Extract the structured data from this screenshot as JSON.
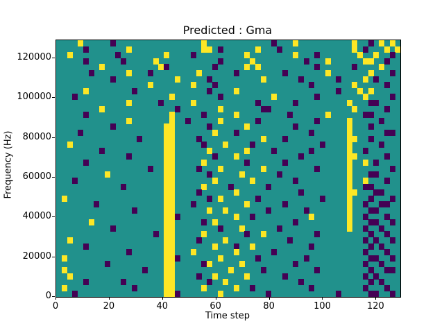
{
  "chart_data": {
    "type": "heatmap",
    "title": "Predicted : Gma",
    "xlabel": "Time step",
    "ylabel": "Frequency (Hz)",
    "x_range": [
      0,
      129
    ],
    "y_range": [
      0,
      129000
    ],
    "x_ticks": [
      0,
      20,
      40,
      60,
      80,
      100,
      120
    ],
    "y_ticks": [
      0,
      20000,
      40000,
      60000,
      80000,
      100000,
      120000
    ],
    "legend": "none",
    "grid_lines": "off",
    "colors": {
      "background_value": "#21918c",
      "high": "#fde725",
      "low": "#440154",
      "figure_background": "#ffffff"
    },
    "value_meaning": {
      "background_value": "mid/neutral class",
      "high": "yellow class",
      "low": "purple class"
    },
    "grid": {
      "cols": 64,
      "rows": 43,
      "row_order": "top-to-bottom (high frequency first)",
      "cells": [
        {
          "y": [
            4,
            27,
            44,
            55,
            60,
            62
          ],
          "p": [
            10,
            40,
            58
          ]
        },
        {
          "y": [
            13,
            27,
            28,
            37,
            55,
            61,
            63
          ],
          "p": [
            5,
            30,
            41,
            57
          ]
        },
        {
          "y": [
            2,
            20,
            35,
            44,
            56,
            59
          ],
          "p": [
            11,
            25,
            48,
            62
          ]
        },
        {
          "y": [
            18,
            36,
            50,
            57,
            58
          ],
          "p": [
            5,
            12,
            30,
            46,
            61
          ]
        },
        {
          "y": [
            8,
            19,
            35,
            37,
            60
          ],
          "p": [
            20,
            29,
            48,
            55
          ]
        },
        {
          "y": [
            13,
            26,
            50,
            58
          ],
          "p": [
            6,
            17,
            33,
            42,
            62
          ]
        },
        {
          "y": [
            22,
            38,
            57
          ],
          "p": [
            10,
            28,
            45,
            52,
            59
          ]
        },
        {
          "y": [
            17,
            25,
            55
          ],
          "p": [
            29,
            47,
            61
          ]
        },
        {
          "y": [
            5,
            33,
            56,
            58
          ],
          "p": [
            14,
            28,
            52
          ]
        },
        {
          "y": [
            21,
            40,
            57
          ],
          "p": [
            3,
            30,
            48,
            62
          ]
        },
        {
          "y": [
            13,
            25,
            54
          ],
          "p": [
            19,
            37,
            44,
            58,
            59
          ]
        },
        {
          "y": [
            8,
            30,
            55
          ],
          "p": [
            22,
            38,
            39,
            61
          ]
        },
        {
          "y": [
            21,
            33,
            50
          ],
          "p": [
            5,
            27,
            43,
            57,
            58
          ]
        },
        {
          "y": [
            13,
            21,
            30,
            54
          ],
          "p": [
            24,
            37,
            48,
            60
          ]
        },
        {
          "y": [
            20,
            21,
            35,
            54
          ],
          "p": [
            10,
            28,
            44,
            58
          ]
        },
        {
          "y": [
            20,
            21,
            29,
            54
          ],
          "p": [
            4,
            33,
            47,
            61,
            62
          ]
        },
        {
          "y": [
            20,
            21,
            38,
            54,
            55
          ],
          "p": [
            15,
            26,
            42,
            58
          ]
        },
        {
          "y": [
            2,
            20,
            21,
            31,
            54
          ],
          "p": [
            27,
            36,
            49,
            60
          ]
        },
        {
          "y": [
            20,
            21,
            28,
            35,
            54
          ],
          "p": [
            8,
            40,
            47,
            57
          ]
        },
        {
          "y": [
            20,
            21,
            33,
            54,
            55
          ],
          "p": [
            13,
            29,
            45,
            61
          ]
        },
        {
          "y": [
            20,
            21,
            27,
            54,
            57
          ],
          "p": [
            5,
            35,
            42,
            59
          ]
        },
        {
          "y": [
            20,
            21,
            30,
            38,
            54
          ],
          "p": [
            17,
            26,
            48,
            62
          ]
        },
        {
          "y": [
            9,
            20,
            21,
            34,
            54
          ],
          "p": [
            28,
            41,
            58,
            59
          ]
        },
        {
          "y": [
            20,
            21,
            29,
            36,
            54,
            57
          ],
          "p": [
            3,
            44,
            61
          ]
        },
        {
          "y": [
            20,
            21,
            27,
            54
          ],
          "p": [
            12,
            32,
            39,
            57,
            58
          ]
        },
        {
          "y": [
            20,
            21,
            33,
            54,
            55
          ],
          "p": [
            26,
            45,
            59,
            60
          ]
        },
        {
          "y": [
            1,
            20,
            21,
            30,
            54
          ],
          "p": [
            28,
            37,
            49,
            58,
            62
          ]
        },
        {
          "y": [
            20,
            21,
            35,
            54
          ],
          "p": [
            7,
            25,
            42,
            57,
            60,
            61
          ]
        },
        {
          "y": [
            20,
            21,
            28,
            31,
            54
          ],
          "p": [
            14,
            39,
            46,
            58,
            59
          ]
        },
        {
          "y": [
            20,
            21,
            33,
            47,
            54
          ],
          "p": [
            22,
            36,
            57,
            61
          ]
        },
        {
          "y": [
            6,
            20,
            21,
            29,
            54
          ],
          "p": [
            27,
            44,
            58,
            59,
            62
          ]
        },
        {
          "y": [
            20,
            21,
            34,
            54
          ],
          "p": [
            10,
            30,
            41,
            57,
            60
          ]
        },
        {
          "y": [
            20,
            21,
            27,
            38
          ],
          "p": [
            18,
            35,
            48,
            58,
            61
          ]
        },
        {
          "y": [
            2,
            20,
            21,
            31
          ],
          "p": [
            26,
            43,
            57,
            59,
            62
          ]
        },
        {
          "y": [
            20,
            21,
            29,
            36
          ],
          "p": [
            5,
            33,
            47,
            58,
            60
          ]
        },
        {
          "y": [
            20,
            21,
            25,
            33
          ],
          "p": [
            13,
            40,
            57,
            61
          ]
        },
        {
          "y": [
            1,
            20,
            21,
            30
          ],
          "p": [
            22,
            37,
            46,
            58,
            59,
            62
          ]
        },
        {
          "y": [
            20,
            21,
            28,
            34
          ],
          "p": [
            9,
            27,
            44,
            57,
            60
          ]
        },
        {
          "y": [
            1,
            20,
            21,
            32
          ],
          "p": [
            16,
            38,
            48,
            58,
            61,
            62
          ]
        },
        {
          "y": [
            2,
            20,
            21,
            29,
            35
          ],
          "p": [
            26,
            42,
            57,
            59
          ]
        },
        {
          "y": [
            20,
            21,
            31
          ],
          "p": [
            5,
            12,
            28,
            45,
            58,
            60
          ]
        },
        {
          "y": [
            1,
            20,
            21,
            27,
            33
          ],
          "p": [
            14,
            36,
            47,
            57,
            61
          ]
        },
        {
          "y": [
            20,
            21,
            30
          ],
          "p": [
            3,
            22,
            39,
            52,
            58,
            59,
            62
          ]
        }
      ]
    }
  }
}
